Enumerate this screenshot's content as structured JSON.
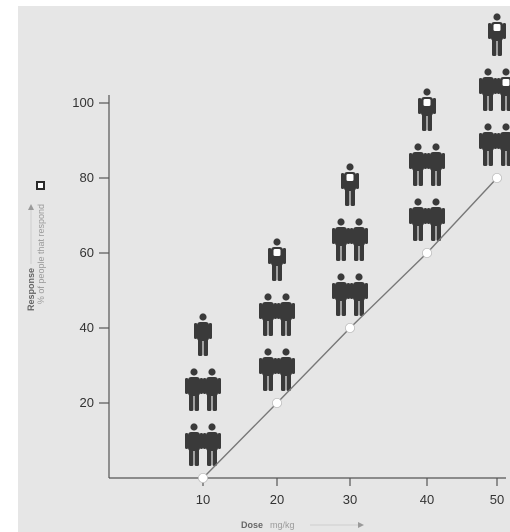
{
  "chart_data": {
    "type": "line",
    "title": "",
    "xlabel": "Dose",
    "xunit": "mg/kg",
    "ylabel": "Response",
    "ysub": "% of people that respond",
    "x": [
      10,
      20,
      30,
      40,
      50
    ],
    "series": [
      {
        "values": [
          0,
          20,
          40,
          60,
          80
        ]
      }
    ],
    "responders_per_dose": [
      5,
      5,
      5,
      5,
      5
    ],
    "responders_highlighted": [
      0,
      1,
      1,
      1,
      2
    ],
    "xticks": [
      "10",
      "20",
      "30",
      "40",
      "50"
    ],
    "yticks": [
      "20",
      "40",
      "60",
      "80",
      "100"
    ],
    "xlim": [
      0,
      50
    ],
    "ylim": [
      0,
      100
    ],
    "grid": false,
    "legend": "none",
    "colors": {
      "background": "#e6e6e6",
      "axis": "#555555",
      "line": "#777777",
      "marker": "#ffffff",
      "figure": "#3a3a3a",
      "highlight": "#ffffff"
    }
  }
}
